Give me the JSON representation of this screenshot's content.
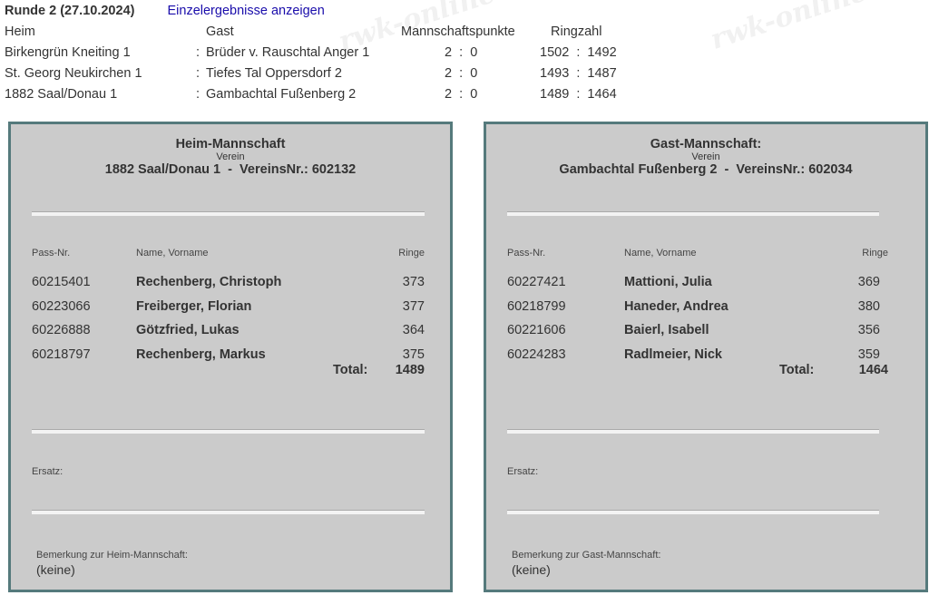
{
  "round": {
    "title": "Runde 2  (27.10.2024)",
    "link": "Einzelergebnisse anzeigen"
  },
  "headers": {
    "home": "Heim",
    "guest": "Gast",
    "points": "Mannschaftspunkte",
    "rings": "Ringzahl"
  },
  "matches": [
    {
      "home": "Birkengrün Kneiting 1",
      "sep": ":",
      "guest": "Brüder v. Rauschtal Anger 1",
      "points": "2  :  0",
      "rings": "1502  :  1492"
    },
    {
      "home": "St. Georg Neukirchen 1",
      "sep": ":",
      "guest": "Tiefes Tal Oppersdorf 2",
      "points": "2  :  0",
      "rings": "1493  :  1487"
    },
    {
      "home": "1882 Saal/Donau 1",
      "sep": ":",
      "guest": "Gambachtal Fußenberg 2",
      "points": "2  :  0",
      "rings": "1489  :  1464"
    }
  ],
  "home_team": {
    "heading": "Heim-Mannschaft",
    "verein_label": "Verein",
    "name_line": "1882 Saal/Donau 1  -  VereinsNr.: 602132",
    "col_pass": "Pass-Nr.",
    "col_name": "Name, Vorname",
    "col_rings": "Ringe",
    "players": [
      {
        "pass": "60215401",
        "name": "Rechenberg, Christoph",
        "rings": "373"
      },
      {
        "pass": "60223066",
        "name": "Freiberger, Florian",
        "rings": "377"
      },
      {
        "pass": "60226888",
        "name": "Götzfried, Lukas",
        "rings": "364"
      },
      {
        "pass": "60218797",
        "name": "Rechenberg, Markus",
        "rings": "375"
      }
    ],
    "total_label": "Total:",
    "total": "1489",
    "substitute_label": "Ersatz:",
    "remark_label": "Bemerkung zur Heim-Mannschaft:",
    "remark": "(keine)"
  },
  "guest_team": {
    "heading": "Gast-Mannschaft:",
    "verein_label": "Verein",
    "name_line": "Gambachtal Fußenberg 2  -  VereinsNr.: 602034",
    "col_pass": "Pass-Nr.",
    "col_name": "Name, Vorname",
    "col_rings": "Ringe",
    "players": [
      {
        "pass": "60227421",
        "name": "Mattioni, Julia",
        "rings": "369"
      },
      {
        "pass": "60218799",
        "name": "Haneder, Andrea",
        "rings": "380"
      },
      {
        "pass": "60221606",
        "name": "Baierl, Isabell",
        "rings": "356"
      },
      {
        "pass": "60224283",
        "name": "Radlmeier, Nick",
        "rings": "359"
      }
    ],
    "total_label": "Total:",
    "total": "1464",
    "substitute_label": "Ersatz:",
    "remark_label": "Bemerkung zur Gast-Mannschaft:",
    "remark": "(keine)"
  },
  "watermark": "rwk-online"
}
